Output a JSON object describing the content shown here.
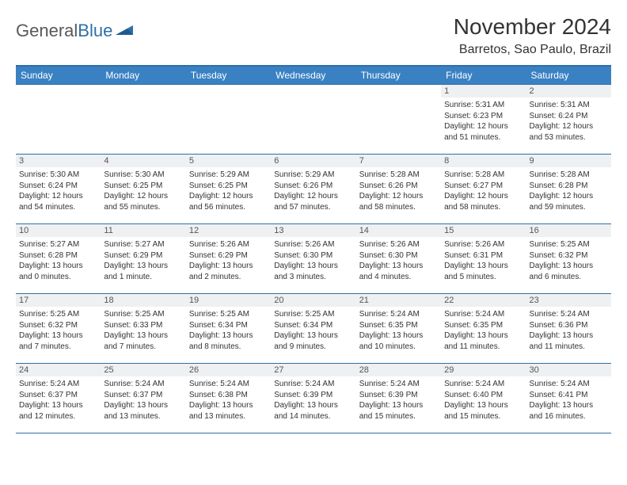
{
  "brand": {
    "part1": "General",
    "part2": "Blue"
  },
  "title": "November 2024",
  "location": "Barretos, Sao Paulo, Brazil",
  "colors": {
    "header_bg": "#3a81c3",
    "header_border": "#2f6fa7",
    "cell_border": "#2f6fa7",
    "daynum_bg": "#eef0f2",
    "text": "#333333",
    "logo_gray": "#58595b",
    "logo_blue": "#2f6fa7",
    "white": "#ffffff"
  },
  "typography": {
    "month_title_size": 28,
    "location_size": 16,
    "weekday_size": 12,
    "daynum_size": 11,
    "body_size": 10
  },
  "weekdays": [
    "Sunday",
    "Monday",
    "Tuesday",
    "Wednesday",
    "Thursday",
    "Friday",
    "Saturday"
  ],
  "grid": [
    [
      {
        "n": "",
        "sr": "",
        "ss": "",
        "dl": ""
      },
      {
        "n": "",
        "sr": "",
        "ss": "",
        "dl": ""
      },
      {
        "n": "",
        "sr": "",
        "ss": "",
        "dl": ""
      },
      {
        "n": "",
        "sr": "",
        "ss": "",
        "dl": ""
      },
      {
        "n": "",
        "sr": "",
        "ss": "",
        "dl": ""
      },
      {
        "n": "1",
        "sr": "Sunrise: 5:31 AM",
        "ss": "Sunset: 6:23 PM",
        "dl": "Daylight: 12 hours and 51 minutes."
      },
      {
        "n": "2",
        "sr": "Sunrise: 5:31 AM",
        "ss": "Sunset: 6:24 PM",
        "dl": "Daylight: 12 hours and 53 minutes."
      }
    ],
    [
      {
        "n": "3",
        "sr": "Sunrise: 5:30 AM",
        "ss": "Sunset: 6:24 PM",
        "dl": "Daylight: 12 hours and 54 minutes."
      },
      {
        "n": "4",
        "sr": "Sunrise: 5:30 AM",
        "ss": "Sunset: 6:25 PM",
        "dl": "Daylight: 12 hours and 55 minutes."
      },
      {
        "n": "5",
        "sr": "Sunrise: 5:29 AM",
        "ss": "Sunset: 6:25 PM",
        "dl": "Daylight: 12 hours and 56 minutes."
      },
      {
        "n": "6",
        "sr": "Sunrise: 5:29 AM",
        "ss": "Sunset: 6:26 PM",
        "dl": "Daylight: 12 hours and 57 minutes."
      },
      {
        "n": "7",
        "sr": "Sunrise: 5:28 AM",
        "ss": "Sunset: 6:26 PM",
        "dl": "Daylight: 12 hours and 58 minutes."
      },
      {
        "n": "8",
        "sr": "Sunrise: 5:28 AM",
        "ss": "Sunset: 6:27 PM",
        "dl": "Daylight: 12 hours and 58 minutes."
      },
      {
        "n": "9",
        "sr": "Sunrise: 5:28 AM",
        "ss": "Sunset: 6:28 PM",
        "dl": "Daylight: 12 hours and 59 minutes."
      }
    ],
    [
      {
        "n": "10",
        "sr": "Sunrise: 5:27 AM",
        "ss": "Sunset: 6:28 PM",
        "dl": "Daylight: 13 hours and 0 minutes."
      },
      {
        "n": "11",
        "sr": "Sunrise: 5:27 AM",
        "ss": "Sunset: 6:29 PM",
        "dl": "Daylight: 13 hours and 1 minute."
      },
      {
        "n": "12",
        "sr": "Sunrise: 5:26 AM",
        "ss": "Sunset: 6:29 PM",
        "dl": "Daylight: 13 hours and 2 minutes."
      },
      {
        "n": "13",
        "sr": "Sunrise: 5:26 AM",
        "ss": "Sunset: 6:30 PM",
        "dl": "Daylight: 13 hours and 3 minutes."
      },
      {
        "n": "14",
        "sr": "Sunrise: 5:26 AM",
        "ss": "Sunset: 6:30 PM",
        "dl": "Daylight: 13 hours and 4 minutes."
      },
      {
        "n": "15",
        "sr": "Sunrise: 5:26 AM",
        "ss": "Sunset: 6:31 PM",
        "dl": "Daylight: 13 hours and 5 minutes."
      },
      {
        "n": "16",
        "sr": "Sunrise: 5:25 AM",
        "ss": "Sunset: 6:32 PM",
        "dl": "Daylight: 13 hours and 6 minutes."
      }
    ],
    [
      {
        "n": "17",
        "sr": "Sunrise: 5:25 AM",
        "ss": "Sunset: 6:32 PM",
        "dl": "Daylight: 13 hours and 7 minutes."
      },
      {
        "n": "18",
        "sr": "Sunrise: 5:25 AM",
        "ss": "Sunset: 6:33 PM",
        "dl": "Daylight: 13 hours and 7 minutes."
      },
      {
        "n": "19",
        "sr": "Sunrise: 5:25 AM",
        "ss": "Sunset: 6:34 PM",
        "dl": "Daylight: 13 hours and 8 minutes."
      },
      {
        "n": "20",
        "sr": "Sunrise: 5:25 AM",
        "ss": "Sunset: 6:34 PM",
        "dl": "Daylight: 13 hours and 9 minutes."
      },
      {
        "n": "21",
        "sr": "Sunrise: 5:24 AM",
        "ss": "Sunset: 6:35 PM",
        "dl": "Daylight: 13 hours and 10 minutes."
      },
      {
        "n": "22",
        "sr": "Sunrise: 5:24 AM",
        "ss": "Sunset: 6:35 PM",
        "dl": "Daylight: 13 hours and 11 minutes."
      },
      {
        "n": "23",
        "sr": "Sunrise: 5:24 AM",
        "ss": "Sunset: 6:36 PM",
        "dl": "Daylight: 13 hours and 11 minutes."
      }
    ],
    [
      {
        "n": "24",
        "sr": "Sunrise: 5:24 AM",
        "ss": "Sunset: 6:37 PM",
        "dl": "Daylight: 13 hours and 12 minutes."
      },
      {
        "n": "25",
        "sr": "Sunrise: 5:24 AM",
        "ss": "Sunset: 6:37 PM",
        "dl": "Daylight: 13 hours and 13 minutes."
      },
      {
        "n": "26",
        "sr": "Sunrise: 5:24 AM",
        "ss": "Sunset: 6:38 PM",
        "dl": "Daylight: 13 hours and 13 minutes."
      },
      {
        "n": "27",
        "sr": "Sunrise: 5:24 AM",
        "ss": "Sunset: 6:39 PM",
        "dl": "Daylight: 13 hours and 14 minutes."
      },
      {
        "n": "28",
        "sr": "Sunrise: 5:24 AM",
        "ss": "Sunset: 6:39 PM",
        "dl": "Daylight: 13 hours and 15 minutes."
      },
      {
        "n": "29",
        "sr": "Sunrise: 5:24 AM",
        "ss": "Sunset: 6:40 PM",
        "dl": "Daylight: 13 hours and 15 minutes."
      },
      {
        "n": "30",
        "sr": "Sunrise: 5:24 AM",
        "ss": "Sunset: 6:41 PM",
        "dl": "Daylight: 13 hours and 16 minutes."
      }
    ]
  ]
}
